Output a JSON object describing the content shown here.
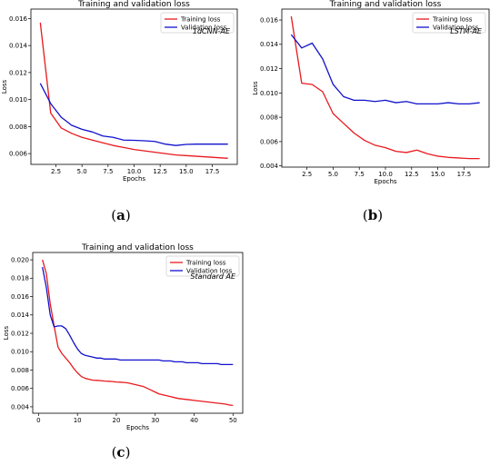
{
  "colors": {
    "training": "#e8191e",
    "validation": "#1111cc"
  },
  "chart_data": [
    {
      "type": "line",
      "panel": "(a)",
      "title": "Training and validation loss",
      "xlabel": "Epochs",
      "ylabel": "Loss",
      "annotation": "1dCNN-AE",
      "xlim": [
        0.1,
        19.9
      ],
      "ylim": [
        0.0052,
        0.0167
      ],
      "xticks": [
        2.5,
        5.0,
        7.5,
        10.0,
        12.5,
        15.0,
        17.5
      ],
      "xtick_labels": [
        "2.5",
        "5.0",
        "7.5",
        "10.0",
        "12.5",
        "15.0",
        "17.5"
      ],
      "yticks": [
        0.006,
        0.008,
        0.01,
        0.012,
        0.014,
        0.016
      ],
      "ytick_labels": [
        "0.006",
        "0.008",
        "0.010",
        "0.012",
        "0.014",
        "0.016"
      ],
      "legend": "top-right",
      "x": [
        1,
        2,
        3,
        4,
        5,
        6,
        7,
        8,
        9,
        10,
        11,
        12,
        13,
        14,
        15,
        16,
        17,
        18,
        19
      ],
      "series": [
        {
          "name": "Training loss",
          "values": [
            0.0157,
            0.009,
            0.0079,
            0.0075,
            0.0072,
            0.007,
            0.0068,
            0.0066,
            0.00645,
            0.0063,
            0.0062,
            0.0061,
            0.006,
            0.0059,
            0.00585,
            0.0058,
            0.00575,
            0.0057,
            0.00565
          ]
        },
        {
          "name": "Validation loss",
          "values": [
            0.0112,
            0.0097,
            0.0087,
            0.0081,
            0.0078,
            0.0076,
            0.0073,
            0.0072,
            0.007,
            0.00698,
            0.00695,
            0.0069,
            0.0067,
            0.0066,
            0.00668,
            0.0067,
            0.0067,
            0.0067,
            0.0067
          ]
        }
      ]
    },
    {
      "type": "line",
      "panel": "(b)",
      "title": "Training and validation loss",
      "xlabel": "Epochs",
      "ylabel": "Loss",
      "annotation": "LSTM-AE",
      "xlim": [
        0.1,
        19.9
      ],
      "ylim": [
        0.0039,
        0.0169
      ],
      "xticks": [
        2.5,
        5.0,
        7.5,
        10.0,
        12.5,
        15.0,
        17.5
      ],
      "xtick_labels": [
        "2.5",
        "5.0",
        "7.5",
        "10.0",
        "12.5",
        "15.0",
        "17.5"
      ],
      "yticks": [
        0.004,
        0.006,
        0.008,
        0.01,
        0.012,
        0.014,
        0.016
      ],
      "ytick_labels": [
        "0.004",
        "0.006",
        "0.008",
        "0.010",
        "0.012",
        "0.014",
        "0.016"
      ],
      "legend": "top-right",
      "x": [
        1,
        2,
        3,
        4,
        5,
        6,
        7,
        8,
        9,
        10,
        11,
        12,
        13,
        14,
        15,
        16,
        17,
        18,
        19
      ],
      "series": [
        {
          "name": "Training loss",
          "values": [
            0.0163,
            0.0108,
            0.0107,
            0.0101,
            0.0083,
            0.0075,
            0.0067,
            0.0061,
            0.0057,
            0.0055,
            0.0052,
            0.0051,
            0.0053,
            0.005,
            0.0048,
            0.0047,
            0.00465,
            0.0046,
            0.0046
          ]
        },
        {
          "name": "Validation loss",
          "values": [
            0.0148,
            0.0137,
            0.0141,
            0.0128,
            0.0107,
            0.0097,
            0.0094,
            0.0094,
            0.0093,
            0.0094,
            0.0092,
            0.0093,
            0.0091,
            0.0091,
            0.0091,
            0.0092,
            0.0091,
            0.0091,
            0.0092
          ]
        }
      ]
    },
    {
      "type": "line",
      "panel": "(c)",
      "title": "Training and validation loss",
      "xlabel": "Epochs",
      "ylabel": "Loss",
      "annotation": "Standard AE",
      "xlim": [
        -1.5,
        52.5
      ],
      "ylim": [
        0.0033,
        0.0208
      ],
      "xticks": [
        0,
        10,
        20,
        30,
        40,
        50
      ],
      "xtick_labels": [
        "0",
        "10",
        "20",
        "30",
        "40",
        "50"
      ],
      "yticks": [
        0.004,
        0.006,
        0.008,
        0.01,
        0.012,
        0.014,
        0.016,
        0.018,
        0.02
      ],
      "ytick_labels": [
        "0.004",
        "0.006",
        "0.008",
        "0.010",
        "0.012",
        "0.014",
        "0.016",
        "0.018",
        "0.020"
      ],
      "legend": "top-right",
      "x": [
        1,
        2,
        3,
        4,
        5,
        6,
        7,
        8,
        9,
        10,
        11,
        12,
        13,
        14,
        15,
        16,
        17,
        18,
        19,
        20,
        21,
        22,
        23,
        24,
        25,
        26,
        27,
        28,
        29,
        30,
        31,
        32,
        33,
        34,
        35,
        36,
        37,
        38,
        39,
        40,
        41,
        42,
        43,
        44,
        45,
        46,
        47,
        48,
        49,
        50
      ],
      "series": [
        {
          "name": "Training loss",
          "values": [
            0.02,
            0.0185,
            0.0152,
            0.0128,
            0.0105,
            0.0098,
            0.0093,
            0.0088,
            0.0082,
            0.0077,
            0.0073,
            0.0071,
            0.007,
            0.0069,
            0.00688,
            0.00685,
            0.0068,
            0.00678,
            0.00675,
            0.0067,
            0.00668,
            0.00665,
            0.0066,
            0.0065,
            0.0064,
            0.0063,
            0.0062,
            0.006,
            0.0058,
            0.0056,
            0.0054,
            0.0053,
            0.0052,
            0.0051,
            0.005,
            0.0049,
            0.00485,
            0.0048,
            0.00475,
            0.0047,
            0.00465,
            0.0046,
            0.00455,
            0.0045,
            0.00445,
            0.0044,
            0.00435,
            0.0043,
            0.0042,
            0.00415
          ]
        },
        {
          "name": "Validation loss",
          "values": [
            0.0192,
            0.017,
            0.014,
            0.0127,
            0.0128,
            0.0128,
            0.0125,
            0.0118,
            0.011,
            0.0103,
            0.0098,
            0.0096,
            0.0095,
            0.0094,
            0.0093,
            0.0093,
            0.0092,
            0.0092,
            0.0092,
            0.0092,
            0.0091,
            0.0091,
            0.0091,
            0.0091,
            0.0091,
            0.0091,
            0.0091,
            0.0091,
            0.0091,
            0.0091,
            0.0091,
            0.009,
            0.009,
            0.009,
            0.0089,
            0.0089,
            0.0089,
            0.0088,
            0.0088,
            0.0088,
            0.0088,
            0.0087,
            0.0087,
            0.0087,
            0.0087,
            0.0087,
            0.0086,
            0.0086,
            0.0086,
            0.0086
          ]
        }
      ]
    }
  ]
}
